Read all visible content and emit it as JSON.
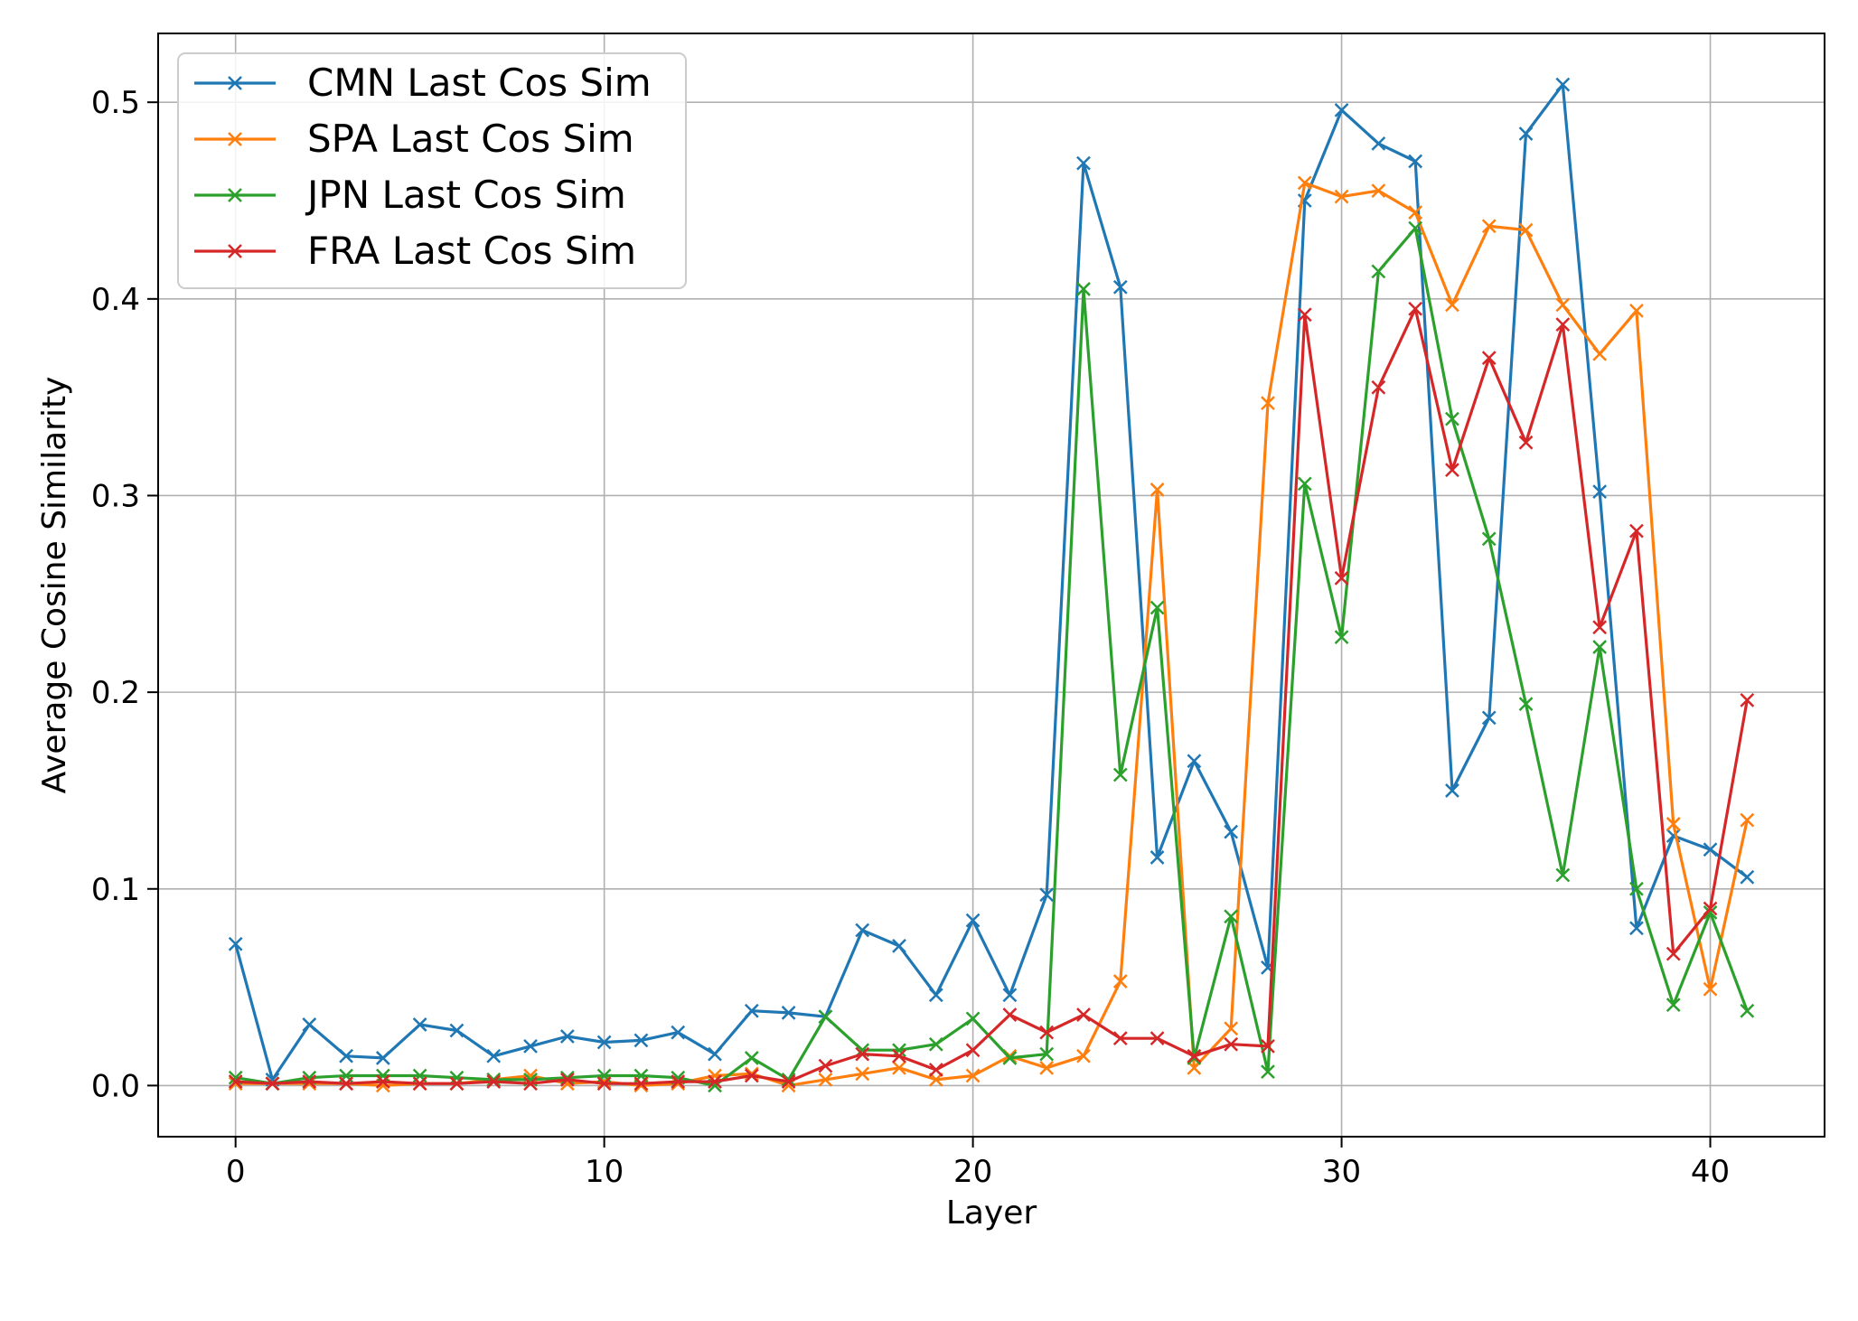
{
  "chart_data": {
    "type": "line",
    "title": "",
    "xlabel": "Layer",
    "ylabel": "Average Cosine Similarity",
    "xlim": [
      -2.1,
      43.1
    ],
    "ylim": [
      -0.026,
      0.535
    ],
    "xticks": [
      0,
      10,
      20,
      30,
      40
    ],
    "xtick_labels": [
      "0",
      "10",
      "20",
      "30",
      "40"
    ],
    "yticks": [
      0.0,
      0.1,
      0.2,
      0.3,
      0.4,
      0.5
    ],
    "ytick_labels": [
      "0.0",
      "0.1",
      "0.2",
      "0.3",
      "0.4",
      "0.5"
    ],
    "grid": true,
    "legend_position": "upper-left",
    "marker": "x",
    "x": [
      0,
      1,
      2,
      3,
      4,
      5,
      6,
      7,
      8,
      9,
      10,
      11,
      12,
      13,
      14,
      15,
      16,
      17,
      18,
      19,
      20,
      21,
      22,
      23,
      24,
      25,
      26,
      27,
      28,
      29,
      30,
      31,
      32,
      33,
      34,
      35,
      36,
      37,
      38,
      39,
      40,
      41
    ],
    "series": [
      {
        "name": "CMN Last Cos Sim",
        "color": "#1f77b4",
        "values": [
          0.072,
          0.003,
          0.031,
          0.015,
          0.014,
          0.031,
          0.028,
          0.015,
          0.02,
          0.025,
          0.022,
          0.023,
          0.027,
          0.016,
          0.038,
          0.037,
          0.035,
          0.079,
          0.071,
          0.046,
          0.084,
          0.046,
          0.097,
          0.469,
          0.406,
          0.116,
          0.165,
          0.129,
          0.06,
          0.45,
          0.496,
          0.479,
          0.47,
          0.15,
          0.187,
          0.484,
          0.509,
          0.302,
          0.08,
          0.127,
          0.12,
          0.106
        ]
      },
      {
        "name": "SPA Last Cos Sim",
        "color": "#ff7f0e",
        "values": [
          0.001,
          0.001,
          0.001,
          0.001,
          0.0,
          0.001,
          0.001,
          0.003,
          0.005,
          0.001,
          0.002,
          0.0,
          0.001,
          0.005,
          0.006,
          0.0,
          0.003,
          0.006,
          0.009,
          0.003,
          0.005,
          0.015,
          0.009,
          0.015,
          0.053,
          0.303,
          0.009,
          0.029,
          0.347,
          0.459,
          0.452,
          0.455,
          0.444,
          0.397,
          0.437,
          0.435,
          0.397,
          0.372,
          0.394,
          0.133,
          0.049,
          0.135
        ]
      },
      {
        "name": "JPN Last Cos Sim",
        "color": "#2ca02c",
        "values": [
          0.004,
          0.001,
          0.004,
          0.005,
          0.005,
          0.005,
          0.004,
          0.003,
          0.003,
          0.004,
          0.005,
          0.005,
          0.004,
          0.0,
          0.014,
          0.003,
          0.035,
          0.018,
          0.018,
          0.021,
          0.034,
          0.014,
          0.016,
          0.405,
          0.158,
          0.243,
          0.014,
          0.086,
          0.007,
          0.306,
          0.228,
          0.414,
          0.436,
          0.339,
          0.278,
          0.194,
          0.107,
          0.223,
          0.1,
          0.041,
          0.088,
          0.038
        ]
      },
      {
        "name": "FRA Last Cos Sim",
        "color": "#d62728",
        "values": [
          0.002,
          0.001,
          0.002,
          0.001,
          0.002,
          0.001,
          0.001,
          0.002,
          0.001,
          0.003,
          0.001,
          0.001,
          0.002,
          0.002,
          0.005,
          0.002,
          0.01,
          0.016,
          0.015,
          0.008,
          0.018,
          0.036,
          0.027,
          0.036,
          0.024,
          0.024,
          0.015,
          0.021,
          0.02,
          0.392,
          0.258,
          0.355,
          0.395,
          0.313,
          0.37,
          0.327,
          0.387,
          0.233,
          0.282,
          0.067,
          0.09,
          0.196
        ]
      }
    ]
  }
}
